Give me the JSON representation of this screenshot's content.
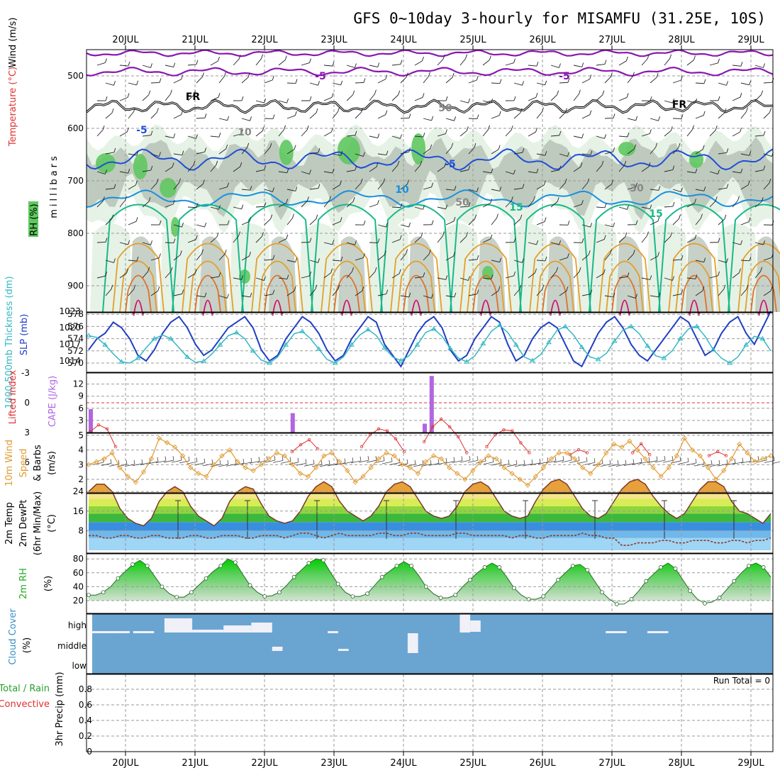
{
  "title": "GFS 0~10day 3-hourly for MISAMFU (31.25E, 10S)",
  "dates": [
    "20JUL",
    "21JUL",
    "22JUL",
    "23JUL",
    "24JUL",
    "25JUL",
    "26JUL",
    "27JUL",
    "28JUL",
    "29JUL"
  ],
  "colors": {
    "purple": "#8a16b0",
    "black": "#000000",
    "blue": "#1f4fd6",
    "lightblue": "#1a8fe0",
    "teal": "#19b88a",
    "orange": "#e49e2b",
    "darkorange": "#e0702a",
    "magenta": "#d0106a",
    "rh_dark": "#5fc85f",
    "rh_grey": "#b9c5b9",
    "rh_light": "#e6f2e6",
    "slp": "#1f3fc4",
    "thick": "#33b8c4",
    "cape": "#b066e0",
    "li": "#e03030",
    "wind": "#e09a30",
    "cloud": "#6aa5d1",
    "cloud_gap": "#f0f0f8"
  },
  "chart_data": [
    {
      "panel": "cross-section",
      "type": "heatmap",
      "ylabels": [
        "Temperature (°C)",
        "Wind (m/s)",
        "RH (%)"
      ],
      "yaxis_title": "millibars",
      "yticks": [
        500,
        600,
        700,
        800,
        900
      ],
      "ylim": [
        450,
        950
      ],
      "contour_labels": [
        "-5",
        "-5",
        "FR",
        "FR",
        "-5",
        "-5",
        "10",
        "15",
        "15",
        "10",
        "50",
        "50",
        "30"
      ]
    },
    {
      "panel": "slp-thickness",
      "type": "line",
      "ylabels": [
        "1000-500mb Thickness (dm)",
        "SLP (mb)"
      ],
      "left_ticks": [
        570,
        572,
        574,
        576,
        578
      ],
      "right_ticks": [
        1014,
        1017,
        1020,
        1023
      ],
      "series": [
        {
          "name": "SLP (mb)",
          "values": [
            1016,
            1018,
            1019,
            1021,
            1020,
            1018,
            1015,
            1014,
            1016,
            1019,
            1021,
            1022,
            1020,
            1017,
            1015,
            1016,
            1018,
            1020,
            1021,
            1022,
            1020,
            1016,
            1014,
            1015,
            1018,
            1020,
            1022,
            1021,
            1019,
            1016,
            1014,
            1015,
            1018,
            1020,
            1022,
            1021,
            1017,
            1015,
            1013,
            1016,
            1019,
            1021,
            1022,
            1020,
            1016,
            1014,
            1015,
            1018,
            1020,
            1022,
            1021,
            1017,
            1014,
            1015,
            1018,
            1020,
            1021,
            1020,
            1017,
            1014,
            1013,
            1016,
            1019,
            1021,
            1022,
            1020,
            1017,
            1015,
            1014,
            1016,
            1018,
            1020,
            1022,
            1021,
            1018,
            1015,
            1016,
            1019,
            1021,
            1022,
            1019,
            1017,
            1020,
            1023
          ]
        },
        {
          "name": "1000-500mb Thickness (dm)",
          "values": [
            574.5,
            574.2,
            573,
            571.5,
            570.2,
            570,
            570.8,
            572.5,
            574,
            574.6,
            574,
            572.5,
            571,
            570.1,
            570.3,
            571.5,
            573,
            574.5,
            575,
            574,
            572,
            570.5,
            570,
            571,
            573,
            574.8,
            575.2,
            574,
            572.3,
            570.6,
            570,
            571,
            573,
            574.6,
            575.5,
            574.5,
            572.5,
            571,
            570.4,
            571.2,
            573,
            575,
            575.6,
            574.4,
            572.4,
            570.8,
            570.2,
            571.2,
            573.2,
            575.2,
            576.2,
            575,
            573,
            571,
            570.4,
            571.4,
            573.4,
            575.4,
            576,
            574.6,
            572.6,
            571,
            570.6,
            571.6,
            573.6,
            575.4,
            576,
            574.8,
            572.8,
            571.2,
            570.8,
            572,
            574,
            575.6,
            576,
            574.4,
            572.2,
            570.8,
            570,
            571,
            573,
            574.4,
            574,
            572
          ]
        }
      ]
    },
    {
      "panel": "cape-li",
      "type": "bar",
      "ylabels": [
        "Lifted Index",
        "CAPE (J/kg)"
      ],
      "li_ticks": [
        "-3",
        "0",
        "3",
        "6"
      ],
      "cape_ticks": [
        3,
        6,
        9,
        12
      ],
      "cape_bars": [
        {
          "day": 0.0,
          "value": 5.8
        },
        {
          "day": 2.6,
          "value": 4.8
        },
        {
          "day": 4.5,
          "value": 2.2
        },
        {
          "day": 4.6,
          "value": 14.0
        }
      ],
      "li_events": [
        {
          "day": 0.0,
          "values": [
            3.5,
            2.8,
            3.2,
            5.0
          ]
        },
        {
          "day": 2.5,
          "values": [
            5.5,
            4.8,
            4.3,
            5.2
          ]
        },
        {
          "day": 3.5,
          "values": [
            5.0,
            3.8,
            3.2,
            3.4,
            4.2,
            5.5
          ]
        },
        {
          "day": 4.4,
          "values": [
            4.5,
            3.0,
            2.2,
            3.0,
            4.0,
            5.6
          ]
        },
        {
          "day": 5.3,
          "values": [
            5.0,
            3.8,
            3.3,
            3.4,
            4.6,
            5.6
          ]
        },
        {
          "day": 6.5,
          "values": [
            5.8,
            5.3,
            5.6
          ]
        },
        {
          "day": 7.4,
          "values": [
            5.6,
            4.7,
            5.8
          ]
        },
        {
          "day": 8.5,
          "values": [
            5.9,
            5.5,
            5.9
          ]
        }
      ]
    },
    {
      "panel": "wind10m",
      "type": "line",
      "ylabels": [
        "10m Wind",
        "Speed",
        "& Barbs",
        "(m/s)"
      ],
      "yticks": [
        2,
        3,
        4,
        5
      ],
      "series": [
        {
          "name": "Speed",
          "values": [
            3.0,
            3.2,
            3.4,
            3.8,
            2.8,
            2.2,
            1.8,
            2.5,
            3.4,
            4.8,
            4.5,
            4.2,
            3.6,
            2.8,
            2.4,
            2.2,
            3.0,
            3.6,
            4.0,
            3.2,
            2.8,
            2.6,
            3.0,
            3.4,
            3.8,
            3.6,
            3.0,
            2.4,
            2.2,
            2.8,
            3.6,
            3.8,
            3.2,
            2.6,
            1.8,
            2.2,
            2.8,
            3.4,
            3.8,
            3.6,
            3.0,
            2.8,
            2.4,
            3.2,
            3.6,
            3.4,
            2.8,
            2.4,
            2.0,
            2.6,
            3.2,
            3.6,
            3.4,
            2.8,
            2.4,
            2.0,
            1.6,
            2.2,
            2.8,
            3.4,
            3.8,
            3.8,
            3.4,
            2.8,
            2.4,
            3.0,
            3.8,
            4.4,
            4.2,
            4.6,
            4.0,
            3.4,
            2.8,
            2.2,
            2.8,
            3.6,
            4.8,
            4.0,
            3.6,
            2.8,
            2.0,
            2.6,
            3.4,
            4.4,
            3.8,
            3.2,
            3.4,
            3.6
          ]
        }
      ]
    },
    {
      "panel": "temp2m",
      "type": "area",
      "ylabels": [
        "2m Temp",
        "2m DewPt",
        "(6hr Min/Max)",
        "(°C)"
      ],
      "yticks": [
        8,
        16,
        24
      ],
      "series": [
        {
          "name": "2m Temp",
          "values": [
            24,
            27,
            27,
            24,
            17,
            13,
            11,
            10,
            13,
            20,
            24,
            26,
            24,
            18,
            14,
            12,
            10,
            13,
            20,
            24,
            26,
            25,
            19,
            14,
            12,
            11,
            12,
            16,
            22,
            26,
            28,
            26,
            20,
            16,
            14,
            12,
            14,
            18,
            24,
            27,
            28,
            26,
            21,
            16,
            14,
            13,
            14,
            18,
            24,
            27,
            28,
            26,
            21,
            16,
            14,
            13,
            14,
            20,
            25,
            28,
            29,
            27,
            22,
            17,
            14,
            13,
            15,
            20,
            25,
            28,
            29,
            27,
            22,
            18,
            15,
            13,
            15,
            20,
            25,
            28,
            28,
            26,
            20,
            16,
            15,
            13,
            11,
            15
          ]
        },
        {
          "name": "2m DewPt",
          "values": [
            6,
            6,
            5,
            5,
            6,
            6,
            5,
            5,
            6,
            6,
            5,
            5,
            5,
            6,
            6,
            5,
            5,
            6,
            6,
            6,
            5,
            5,
            6,
            6,
            6,
            5,
            6,
            7,
            7,
            6,
            5,
            6,
            7,
            6,
            6,
            6,
            6,
            7,
            7,
            6,
            6,
            7,
            7,
            6,
            6,
            6,
            6,
            7,
            7,
            6,
            6,
            6,
            6,
            6,
            5,
            6,
            6,
            5,
            5,
            6,
            6,
            6,
            6,
            7,
            6,
            6,
            5,
            5,
            2,
            2,
            3,
            3,
            3,
            4,
            4,
            3,
            3,
            4,
            4,
            4,
            3,
            3,
            4,
            4,
            3,
            4,
            4,
            5
          ]
        }
      ]
    },
    {
      "panel": "rh2m",
      "type": "area",
      "ylabels": [
        "2m RH",
        "(%)"
      ],
      "yticks": [
        20,
        40,
        60,
        80
      ],
      "series": [
        {
          "name": "2m RH",
          "values": [
            28,
            28,
            32,
            40,
            52,
            62,
            72,
            78,
            70,
            55,
            40,
            30,
            25,
            25,
            32,
            42,
            52,
            62,
            70,
            80,
            75,
            58,
            42,
            32,
            26,
            27,
            32,
            42,
            54,
            64,
            74,
            80,
            78,
            60,
            44,
            32,
            26,
            26,
            30,
            42,
            54,
            62,
            70,
            76,
            70,
            56,
            40,
            30,
            24,
            24,
            28,
            40,
            50,
            60,
            68,
            74,
            68,
            54,
            38,
            28,
            22,
            22,
            26,
            38,
            50,
            60,
            70,
            72,
            64,
            48,
            32,
            22,
            15,
            15,
            22,
            34,
            48,
            58,
            68,
            74,
            66,
            50,
            34,
            22,
            16,
            18,
            24,
            36,
            48,
            60,
            70,
            74,
            68,
            54
          ]
        }
      ]
    },
    {
      "panel": "cloud",
      "type": "bar",
      "ylabels": [
        "Cloud Cover",
        "(%)"
      ],
      "yticks": [
        "high",
        "middle",
        "low"
      ]
    },
    {
      "panel": "precip",
      "type": "bar",
      "ylabels": [
        "Total / Rain",
        "Convective",
        "3hr Precip (mm)"
      ],
      "yticks": [
        0,
        0.2,
        0.4,
        0.6,
        0.8
      ],
      "annotation": "Run Total = 0"
    }
  ]
}
